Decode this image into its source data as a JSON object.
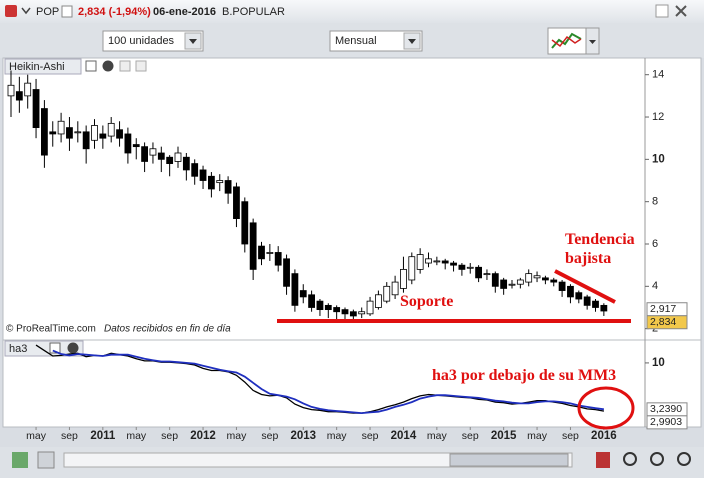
{
  "window": {
    "symbol": "POP",
    "price_change": "2,834 (-1,94%)",
    "date": "06-ene-2016",
    "name": "B.POPULAR",
    "quantity": "100 unidades",
    "period": "Mensual",
    "watermark": "© ProRealTime.com",
    "watermark_note": "Datos recibidos en fin de día"
  },
  "chart_data": [
    {
      "type": "candlestick",
      "title": "Heikin-Ashi",
      "up_color": "#ffffff",
      "down_color": "#000000",
      "open": [
        13.0,
        13.2,
        13.0,
        13.3,
        12.4,
        11.3,
        11.2,
        11.5,
        11.3,
        11.3,
        10.9,
        11.2,
        11.1,
        11.4,
        11.2,
        10.7,
        10.6,
        10.2,
        10.3,
        10.1,
        9.9,
        10.1,
        9.8,
        9.5,
        9.2,
        8.9,
        9.0,
        8.7,
        8.0,
        7.0,
        5.9,
        5.6,
        5.6,
        5.3,
        4.6,
        3.8,
        3.6,
        3.3,
        3.1,
        3.0,
        2.9,
        2.8,
        2.7,
        2.7,
        3.0,
        3.3,
        3.6,
        3.9,
        4.3,
        4.8,
        5.1,
        5.2,
        5.2,
        5.1,
        5.0,
        4.9,
        4.9,
        4.6,
        4.6,
        4.3,
        4.1,
        4.1,
        4.2,
        4.4,
        4.4,
        4.3,
        4.2,
        4.0,
        3.7,
        3.5,
        3.3,
        3.1
      ],
      "high": [
        14.2,
        13.9,
        14.0,
        13.8,
        12.8,
        11.8,
        12.2,
        12.0,
        11.8,
        11.6,
        11.9,
        11.6,
        12.0,
        11.8,
        11.5,
        11.0,
        10.8,
        10.8,
        10.6,
        10.2,
        10.6,
        10.3,
        10.0,
        9.7,
        9.4,
        9.3,
        9.2,
        8.9,
        8.2,
        7.2,
        6.1,
        6.0,
        5.9,
        5.5,
        4.8,
        4.1,
        3.8,
        3.4,
        3.2,
        3.1,
        3.0,
        2.9,
        3.0,
        3.5,
        3.8,
        4.2,
        4.5,
        5.4,
        5.6,
        5.8,
        5.6,
        5.4,
        5.3,
        5.2,
        5.1,
        5.1,
        5.0,
        4.8,
        4.7,
        4.4,
        4.3,
        4.4,
        4.8,
        4.7,
        4.5,
        4.4,
        4.3,
        4.1,
        3.8,
        3.6,
        3.4,
        3.2
      ],
      "low": [
        12.0,
        12.2,
        12.4,
        11.0,
        9.6,
        10.6,
        10.8,
        10.4,
        10.8,
        9.8,
        10.5,
        10.5,
        10.8,
        10.6,
        9.8,
        10.0,
        9.4,
        9.8,
        9.4,
        9.2,
        9.6,
        9.0,
        8.8,
        8.6,
        8.2,
        8.5,
        7.9,
        6.8,
        5.6,
        4.3,
        5.0,
        5.2,
        4.7,
        3.6,
        2.8,
        3.2,
        2.8,
        2.6,
        2.5,
        2.4,
        2.4,
        2.3,
        2.5,
        2.6,
        2.9,
        3.2,
        3.4,
        3.7,
        4.1,
        4.6,
        4.9,
        5.0,
        4.8,
        4.7,
        4.5,
        4.6,
        4.2,
        4.3,
        3.7,
        3.6,
        3.9,
        3.9,
        4.0,
        4.2,
        4.1,
        4.0,
        3.5,
        3.2,
        3.2,
        2.9,
        2.8,
        2.6
      ],
      "close": [
        13.5,
        12.8,
        13.6,
        11.5,
        10.2,
        11.2,
        11.8,
        11.0,
        11.3,
        10.5,
        11.6,
        11.0,
        11.7,
        11.0,
        10.3,
        10.6,
        9.9,
        10.5,
        10.0,
        9.8,
        10.3,
        9.5,
        9.2,
        9.0,
        8.6,
        9.0,
        8.4,
        7.2,
        6.0,
        4.8,
        5.3,
        5.6,
        5.0,
        4.0,
        3.1,
        3.5,
        3.0,
        2.9,
        2.9,
        2.8,
        2.7,
        2.6,
        2.8,
        3.3,
        3.6,
        4.0,
        4.2,
        4.8,
        5.4,
        5.5,
        5.3,
        5.2,
        5.1,
        5.0,
        4.8,
        4.9,
        4.4,
        4.6,
        4.0,
        3.9,
        4.1,
        4.3,
        4.6,
        4.5,
        4.3,
        4.2,
        3.8,
        3.5,
        3.4,
        3.1,
        3.0,
        2.834
      ],
      "ylim": [
        1.7,
        14.6
      ],
      "yticks": [
        2,
        4,
        6,
        8,
        10,
        12,
        14
      ],
      "price_markers": [
        {
          "value": 2.917,
          "label": "2,917"
        },
        {
          "value": 2.834,
          "label": "2,834"
        }
      ],
      "annotations": [
        "Tendencia bajista",
        "Soporte"
      ]
    },
    {
      "type": "line",
      "title": "ha3",
      "categories": [
        null,
        null,
        null,
        "may",
        null,
        null,
        null,
        "sep",
        null,
        null,
        null,
        "2011",
        null,
        null,
        null,
        "may",
        null,
        null,
        null,
        "sep",
        null,
        null,
        null,
        "2012",
        null,
        null,
        null,
        "may",
        null,
        null,
        null,
        "sep",
        null,
        null,
        null,
        "2013",
        null,
        null,
        null,
        "may",
        null,
        null,
        null,
        "sep",
        null,
        null,
        null,
        "2014",
        null,
        null,
        null,
        "may",
        null,
        null,
        null,
        "sep",
        null,
        null,
        null,
        "2015",
        null,
        null,
        null,
        "may",
        null,
        null,
        null,
        "sep",
        null,
        null,
        null,
        "2016"
      ],
      "series": [
        {
          "color": "#000000",
          "end_label": "2,9903",
          "values": [
            null,
            null,
            null,
            12.6,
            11.8,
            11.0,
            11.1,
            11.3,
            11.4,
            10.9,
            11.1,
            11.0,
            11.4,
            11.2,
            11.0,
            10.6,
            10.3,
            10.3,
            10.1,
            10.1,
            10.0,
            9.9,
            9.7,
            9.2,
            8.9,
            8.9,
            8.7,
            8.2,
            7.2,
            6.0,
            5.4,
            5.2,
            5.3,
            4.9,
            4.0,
            3.5,
            3.2,
            3.1,
            2.9,
            2.9,
            2.8,
            2.7,
            2.7,
            2.9,
            3.2,
            3.6,
            3.9,
            4.3,
            4.8,
            5.2,
            5.4,
            5.3,
            5.2,
            5.1,
            5.0,
            4.9,
            4.7,
            4.6,
            4.3,
            4.2,
            4.0,
            4.1,
            4.3,
            4.5,
            4.5,
            4.3,
            4.1,
            3.8,
            3.6,
            3.3,
            3.2,
            2.9903
          ]
        },
        {
          "color": "#1f2fbf",
          "end_label": "3,2390",
          "values": [
            null,
            null,
            null,
            null,
            null,
            11.8,
            11.3,
            11.1,
            11.3,
            11.2,
            11.1,
            11.0,
            11.2,
            11.2,
            11.2,
            10.9,
            10.6,
            10.4,
            10.2,
            10.2,
            10.1,
            10.0,
            9.9,
            9.6,
            9.3,
            9.0,
            8.8,
            8.6,
            8.0,
            7.1,
            6.2,
            5.5,
            5.3,
            5.1,
            4.7,
            4.1,
            3.6,
            3.3,
            3.1,
            3.0,
            2.9,
            2.8,
            2.7,
            2.8,
            2.9,
            3.2,
            3.6,
            3.9,
            4.3,
            4.8,
            5.1,
            5.3,
            5.3,
            5.2,
            5.1,
            5.0,
            4.9,
            4.7,
            4.5,
            4.4,
            4.2,
            4.1,
            4.1,
            4.3,
            4.4,
            4.4,
            4.3,
            4.1,
            3.8,
            3.6,
            3.4,
            3.239
          ]
        }
      ],
      "ylim": [
        0.96,
        12.9
      ],
      "yticks": [
        10
      ],
      "annotations": [
        "ha3 por debajo de su MM3"
      ]
    }
  ]
}
